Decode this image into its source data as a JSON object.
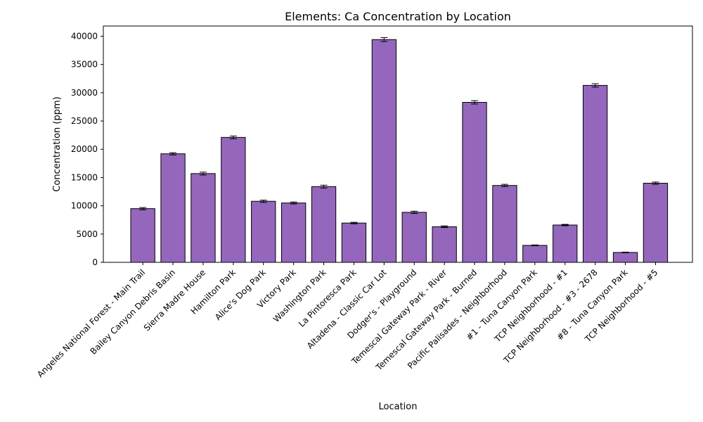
{
  "chart_data": {
    "type": "bar",
    "title": "Elements: Ca Concentration by Location",
    "xlabel": "Location",
    "ylabel": "Concentration (ppm)",
    "ylim": [
      0,
      41800
    ],
    "yticks": [
      0,
      5000,
      10000,
      15000,
      20000,
      25000,
      30000,
      35000,
      40000
    ],
    "grid": false,
    "bar_color": "#9467bd",
    "edge_color": "#000000",
    "categories": [
      "Angeles National Forest - Main Trail",
      "Bailey Canyon Debris Basin",
      "Sierra Madre House",
      "Hamilton Park",
      "Alice's Dog Park",
      "Victory Park",
      "Washington Park",
      "La Pintoresca Park",
      "Altadena - Classic Car Lot",
      "Dodger's - Playground",
      "Temescal Gateway Park - River",
      "Temescal Gateway Park - Burned",
      "Pacific Palisades - Neighborhood",
      "#1 - Tuna Canyon Park",
      "TCP Neighborhood - #1",
      "TCP Neighborhood - #3 - 2678",
      "#8 - Tuna Canyon Park",
      "TCP Neighborhood - #5"
    ],
    "values": [
      9500,
      19200,
      15700,
      22100,
      10800,
      10500,
      13400,
      6950,
      39400,
      8850,
      6300,
      28300,
      13600,
      3000,
      6600,
      31300,
      1750,
      14000
    ],
    "errors": [
      200,
      200,
      250,
      250,
      200,
      180,
      250,
      130,
      350,
      200,
      150,
      300,
      200,
      80,
      120,
      300,
      60,
      200
    ]
  }
}
